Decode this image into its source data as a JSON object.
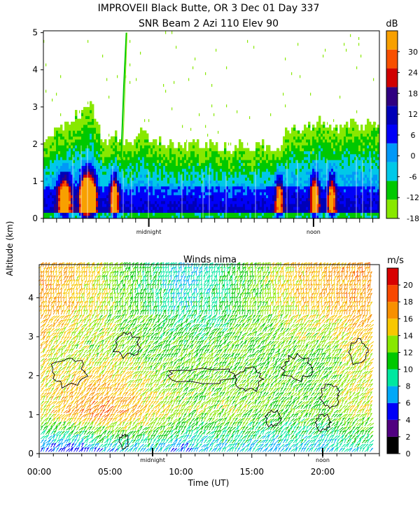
{
  "header": {
    "line1": "IMPROVEII  Black Butte, OR    3 Dec 01 Day 337",
    "line2": "SNR Beam 2 Azi 110 Elev 90"
  },
  "colors": {
    "snr": [
      "#88e800",
      "#00c800",
      "#00c8e8",
      "#0098f8",
      "#0000f8",
      "#0000b8",
      "#300080",
      "#d00000",
      "#f85000",
      "#f8a000"
    ],
    "winds": [
      "#000000",
      "#500080",
      "#0000f8",
      "#00a8f8",
      "#00e8a0",
      "#00c800",
      "#88e800",
      "#f8c800",
      "#f89000",
      "#f84800",
      "#d80000"
    ]
  },
  "chart_data": [
    {
      "type": "heatmap",
      "ylabel": "Altitude (km)",
      "y_ticks": [
        "0",
        "1",
        "2",
        "3",
        "4",
        "5"
      ],
      "ylim": [
        0,
        5.05
      ],
      "x_markers": [
        "midnight",
        "noon"
      ],
      "colorbar": {
        "unit": "dB",
        "ticks": [
          "-18",
          "-12",
          "-6",
          "0",
          "6",
          "12",
          "18",
          "24",
          "30"
        ],
        "range": [
          -18,
          36
        ]
      },
      "time_hours": [
        0,
        0.5,
        1,
        1.5,
        2,
        2.5,
        3,
        3.5,
        4,
        4.5,
        5,
        5.5,
        6,
        6.5,
        7,
        7.5,
        8,
        8.5,
        9,
        9.5,
        10,
        10.5,
        11,
        11.5,
        12,
        12.5,
        13,
        13.5,
        14,
        14.5,
        15,
        15.5,
        16,
        16.5,
        17,
        17.5,
        18,
        18.5,
        19,
        19.5,
        20,
        20.5,
        21,
        21.5,
        22,
        22.5,
        23,
        23.5
      ],
      "top_of_echo_km": [
        1.8,
        2.0,
        2.4,
        2.2,
        2.5,
        2.6,
        2.7,
        3.0,
        2.6,
        2.0,
        1.9,
        2.1,
        1.8,
        1.9,
        2.0,
        2.3,
        1.9,
        1.8,
        1.9,
        1.9,
        1.8,
        1.7,
        1.9,
        2.0,
        1.9,
        1.8,
        1.9,
        1.8,
        1.8,
        1.7,
        1.9,
        1.8,
        1.8,
        1.9,
        1.8,
        1.6,
        1.7,
        2.2,
        2.4,
        2.3,
        2.2,
        2.4,
        2.5,
        2.3,
        2.1,
        2.3,
        2.5,
        2.4
      ]
    },
    {
      "type": "heatmap",
      "title": "Winds nima",
      "xlabel": "Time (UT)",
      "ylabel": "Altitude (km)",
      "x_ticks": [
        "00:00",
        "05:00",
        "10:00",
        "15:00",
        "20:00"
      ],
      "x_tick_hours": [
        0,
        5,
        10,
        15,
        20
      ],
      "xlim": [
        0,
        24
      ],
      "y_ticks": [
        "0",
        "1",
        "2",
        "3",
        "4"
      ],
      "ylim": [
        0,
        4.85
      ],
      "x_markers": [
        "midnight",
        "noon"
      ],
      "colorbar": {
        "unit": "m/s",
        "ticks": [
          "0",
          "2",
          "4",
          "6",
          "8",
          "10",
          "12",
          "14",
          "16",
          "18",
          "20"
        ],
        "range": [
          0,
          22
        ]
      },
      "time_hours": [
        0,
        2,
        4,
        6,
        8,
        10,
        12,
        14,
        16,
        18,
        20,
        22
      ],
      "speed_ms_near_surface": [
        5,
        4,
        6,
        7,
        8,
        6,
        7,
        8,
        7,
        8,
        7,
        8
      ],
      "speed_ms_1km": [
        14,
        17,
        18,
        17,
        15,
        13,
        13,
        13,
        12,
        12,
        12,
        14
      ],
      "speed_ms_2_5km": [
        15,
        13,
        13,
        13,
        12,
        12,
        12,
        12,
        12,
        12,
        12,
        14
      ],
      "speed_ms_4km": [
        17,
        16,
        14,
        12,
        10,
        8,
        9,
        11,
        13,
        15,
        16,
        17
      ]
    }
  ]
}
